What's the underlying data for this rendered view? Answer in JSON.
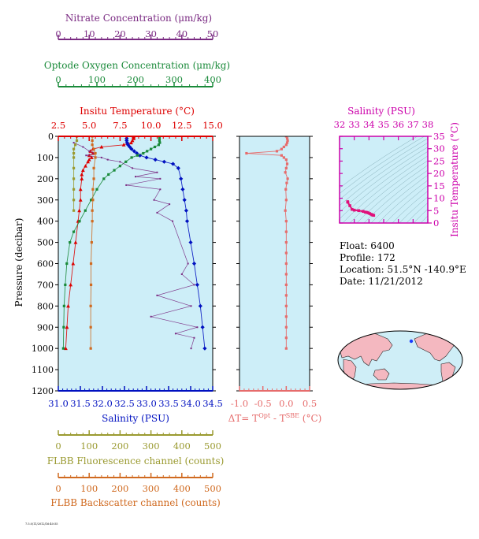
{
  "chart_data": [
    {
      "type": "scatter",
      "panel": "main-profile",
      "ylabel": "Pressure (decibar)",
      "yticks": [
        0,
        100,
        200,
        300,
        400,
        500,
        600,
        700,
        800,
        900,
        1000,
        1100,
        1200
      ],
      "ylim": [
        1200,
        0
      ],
      "axes": {
        "nitrate": {
          "label": "Nitrate Concentration (μm/kg)",
          "ticks": [
            0,
            10,
            20,
            30,
            40,
            50
          ],
          "range": [
            0,
            50
          ],
          "color": "#7a2a82"
        },
        "oxygen": {
          "label": "Optode Oxygen Concentration (μm/kg)",
          "ticks": [
            0,
            100,
            200,
            300,
            400
          ],
          "range": [
            0,
            400
          ],
          "color": "#1a8a3a"
        },
        "temperature": {
          "label": "Insitu Temperature (°C)",
          "ticks": [
            "2.5",
            "5.0",
            "7.5",
            "10.0",
            "12.5",
            "15.0"
          ],
          "range": [
            2.5,
            15.0
          ],
          "color": "#dd0000"
        },
        "salinity": {
          "label": "Salinity (PSU)",
          "ticks": [
            "31.0",
            "31.5",
            "32.0",
            "32.5",
            "33.0",
            "33.5",
            "34.0",
            "34.5"
          ],
          "range": [
            31.0,
            34.5
          ],
          "color": "#0010c0"
        },
        "fluorescence": {
          "label": "FLBB Fluorescence channel (counts)",
          "ticks": [
            0,
            100,
            200,
            300,
            400,
            500
          ],
          "range": [
            0,
            500
          ],
          "color": "#9a9a30"
        },
        "backscatter": {
          "label": "FLBB Backscatter channel (counts)",
          "ticks": [
            0,
            100,
            200,
            300,
            400,
            500
          ],
          "range": [
            0,
            500
          ],
          "color": "#d06a20"
        }
      },
      "series": [
        {
          "name": "Insitu Temperature",
          "axis": "temperature",
          "color": "#dd0000",
          "points": [
            [
              8.6,
              0
            ],
            [
              8.6,
              5
            ],
            [
              8.6,
              10
            ],
            [
              8.5,
              20
            ],
            [
              8.4,
              30
            ],
            [
              7.8,
              40
            ],
            [
              6.0,
              50
            ],
            [
              5.3,
              60
            ],
            [
              5.1,
              70
            ],
            [
              5.3,
              80
            ],
            [
              5.0,
              90
            ],
            [
              5.2,
              100
            ],
            [
              5.0,
              110
            ],
            [
              4.9,
              120
            ],
            [
              4.7,
              140
            ],
            [
              4.5,
              160
            ],
            [
              4.4,
              180
            ],
            [
              4.4,
              200
            ],
            [
              4.3,
              250
            ],
            [
              4.3,
              300
            ],
            [
              4.2,
              350
            ],
            [
              4.1,
              400
            ],
            [
              3.9,
              500
            ],
            [
              3.7,
              600
            ],
            [
              3.5,
              700
            ],
            [
              3.3,
              800
            ],
            [
              3.2,
              900
            ],
            [
              3.1,
              1000
            ]
          ]
        },
        {
          "name": "Salinity",
          "axis": "salinity",
          "color": "#0010c0",
          "points": [
            [
              32.55,
              0
            ],
            [
              32.55,
              10
            ],
            [
              32.55,
              20
            ],
            [
              32.56,
              30
            ],
            [
              32.58,
              40
            ],
            [
              32.62,
              50
            ],
            [
              32.66,
              60
            ],
            [
              32.72,
              70
            ],
            [
              32.78,
              80
            ],
            [
              32.85,
              90
            ],
            [
              33.0,
              100
            ],
            [
              33.2,
              110
            ],
            [
              33.4,
              120
            ],
            [
              33.6,
              130
            ],
            [
              33.72,
              150
            ],
            [
              33.78,
              200
            ],
            [
              33.82,
              250
            ],
            [
              33.86,
              300
            ],
            [
              33.9,
              350
            ],
            [
              33.92,
              400
            ],
            [
              34.0,
              500
            ],
            [
              34.08,
              600
            ],
            [
              34.15,
              700
            ],
            [
              34.22,
              800
            ],
            [
              34.27,
              900
            ],
            [
              34.32,
              1000
            ]
          ]
        },
        {
          "name": "Optode Oxygen Concentration",
          "axis": "oxygen",
          "color": "#1a8a3a",
          "points": [
            [
              262,
              0
            ],
            [
              262,
              10
            ],
            [
              262,
              20
            ],
            [
              263,
              30
            ],
            [
              260,
              40
            ],
            [
              250,
              50
            ],
            [
              240,
              60
            ],
            [
              230,
              70
            ],
            [
              220,
              80
            ],
            [
              205,
              90
            ],
            [
              190,
              100
            ],
            [
              175,
              120
            ],
            [
              160,
              140
            ],
            [
              145,
              160
            ],
            [
              130,
              180
            ],
            [
              118,
              200
            ],
            [
              100,
              250
            ],
            [
              85,
              300
            ],
            [
              70,
              350
            ],
            [
              55,
              400
            ],
            [
              40,
              450
            ],
            [
              30,
              500
            ],
            [
              22,
              600
            ],
            [
              18,
              700
            ],
            [
              15,
              800
            ],
            [
              14,
              900
            ],
            [
              13,
              1000
            ]
          ]
        },
        {
          "name": "Nitrate Concentration",
          "axis": "nitrate",
          "color": "#7a2a82",
          "points": [
            [
              5,
              30
            ],
            [
              8,
              50
            ],
            [
              10,
              70
            ],
            [
              12,
              80
            ],
            [
              9,
              90
            ],
            [
              14,
              100
            ],
            [
              16,
              110
            ],
            [
              20,
              120
            ],
            [
              24,
              150
            ],
            [
              32,
              170
            ],
            [
              25,
              190
            ],
            [
              33,
              200
            ],
            [
              22,
              230
            ],
            [
              33,
              250
            ],
            [
              31,
              300
            ],
            [
              36,
              320
            ],
            [
              32,
              360
            ],
            [
              37,
              400
            ],
            [
              42,
              600
            ],
            [
              40,
              650
            ],
            [
              44,
              700
            ],
            [
              32,
              750
            ],
            [
              43,
              800
            ],
            [
              30,
              850
            ],
            [
              45,
              900
            ],
            [
              38,
              930
            ],
            [
              44,
              950
            ],
            [
              43,
              1000
            ]
          ]
        },
        {
          "name": "FLBB Fluorescence channel",
          "axis": "fluorescence",
          "color": "#9a9a30",
          "points": [
            [
              60,
              0
            ],
            [
              60,
              20
            ],
            [
              55,
              40
            ],
            [
              50,
              60
            ],
            [
              50,
              80
            ],
            [
              50,
              100
            ],
            [
              50,
              150
            ],
            [
              50,
              200
            ],
            [
              50,
              250
            ],
            [
              50,
              300
            ],
            [
              50,
              350
            ]
          ]
        },
        {
          "name": "FLBB Backscatter channel",
          "axis": "backscatter",
          "color": "#d06a20",
          "points": [
            [
              110,
              0
            ],
            [
              110,
              20
            ],
            [
              110,
              40
            ],
            [
              115,
              60
            ],
            [
              120,
              80
            ],
            [
              120,
              100
            ],
            [
              115,
              150
            ],
            [
              115,
              200
            ],
            [
              112,
              250
            ],
            [
              112,
              300
            ],
            [
              110,
              350
            ],
            [
              110,
              400
            ],
            [
              108,
              500
            ],
            [
              106,
              600
            ],
            [
              106,
              700
            ],
            [
              105,
              800
            ],
            [
              105,
              900
            ],
            [
              105,
              1000
            ]
          ]
        }
      ]
    },
    {
      "type": "scatter",
      "panel": "delta-t",
      "xlabel": "ΔT= T",
      "xlabel_sup1": "Opt",
      "xlabel_mid": " - T",
      "xlabel_sup2": "SBE",
      "xlabel_unit": " (°C)",
      "xticks": [
        "-1.0",
        "-0.5",
        "0.0",
        "0.5"
      ],
      "xlim": [
        -1.0,
        0.5
      ],
      "ylim": [
        1200,
        0
      ],
      "series": [
        {
          "name": "ΔT",
          "color": "#e66c6c",
          "points": [
            [
              0.0,
              0
            ],
            [
              0.02,
              10
            ],
            [
              0.03,
              20
            ],
            [
              0.02,
              30
            ],
            [
              0.0,
              40
            ],
            [
              -0.05,
              50
            ],
            [
              -0.1,
              60
            ],
            [
              -0.2,
              70
            ],
            [
              -0.85,
              80
            ],
            [
              -0.1,
              90
            ],
            [
              -0.05,
              100
            ],
            [
              0.0,
              110
            ],
            [
              0.02,
              130
            ],
            [
              0.0,
              150
            ],
            [
              -0.02,
              170
            ],
            [
              0.03,
              200
            ],
            [
              0.01,
              220
            ],
            [
              -0.01,
              250
            ],
            [
              0.0,
              300
            ],
            [
              -0.02,
              350
            ],
            [
              0.0,
              400
            ],
            [
              0.0,
              450
            ],
            [
              0.0,
              500
            ],
            [
              0.0,
              550
            ],
            [
              0.0,
              600
            ],
            [
              0.0,
              650
            ],
            [
              0.0,
              700
            ],
            [
              0.0,
              750
            ],
            [
              0.0,
              800
            ],
            [
              0.0,
              850
            ],
            [
              0.0,
              900
            ],
            [
              0.0,
              950
            ],
            [
              0.0,
              1000
            ]
          ]
        }
      ]
    },
    {
      "type": "scatter",
      "panel": "ts-diagram",
      "title": "Salinity (PSU)",
      "ylabel": "Insitu Temperature (°C)",
      "xticks": [
        "32",
        "33",
        "34",
        "35",
        "36",
        "37",
        "38"
      ],
      "xlim": [
        32,
        38
      ],
      "yticks": [
        "0",
        "5",
        "10",
        "15",
        "20",
        "25",
        "30",
        "35"
      ],
      "ylim": [
        0,
        35
      ],
      "series": [
        {
          "name": "T-S",
          "color": "#e0107a",
          "points": [
            [
              32.55,
              8.6
            ],
            [
              32.56,
              8.4
            ],
            [
              32.7,
              7.0
            ],
            [
              32.85,
              5.5
            ],
            [
              33.0,
              5.2
            ],
            [
              33.3,
              5.0
            ],
            [
              33.6,
              4.7
            ],
            [
              33.75,
              4.4
            ],
            [
              33.85,
              4.3
            ],
            [
              33.95,
              4.1
            ],
            [
              34.05,
              3.8
            ],
            [
              34.15,
              3.5
            ],
            [
              34.25,
              3.2
            ],
            [
              34.32,
              3.1
            ]
          ]
        }
      ]
    }
  ],
  "info": {
    "float": "Float:  6400",
    "profile": "Profile:  172",
    "location": "Location:  51.5°N  -140.9°E",
    "date": "Date:  11/21/2012"
  },
  "map": {
    "marker_color": "#1a3cff",
    "ocean_color": "#cfeef7",
    "land_color": "#f4b8c0"
  },
  "footer": {
    "tiny_label": "7.5.0/11/2012/16:40:55"
  }
}
